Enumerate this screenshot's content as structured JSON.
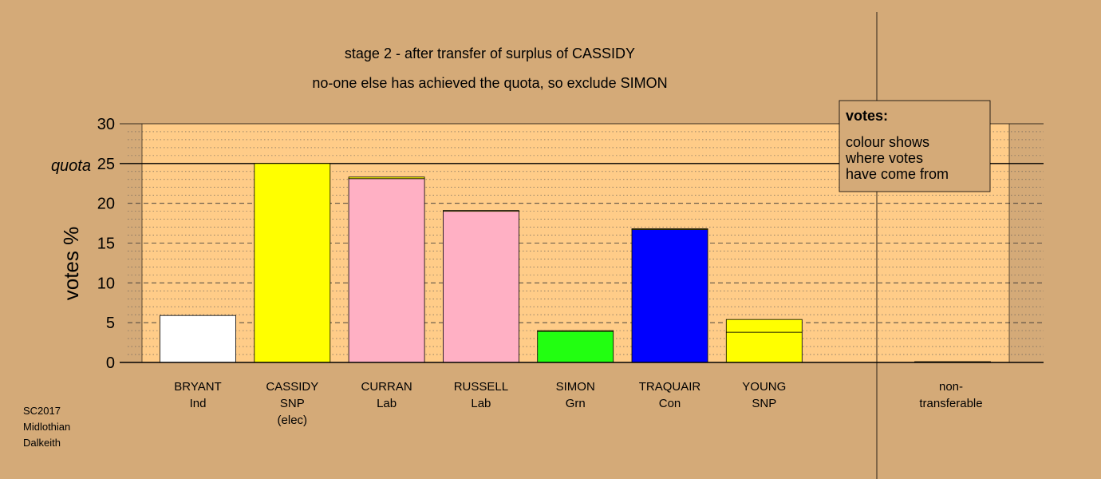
{
  "chart_data": {
    "type": "bar",
    "title": "stage 2 - after transfer of surplus of CASSIDY",
    "subtitle": "no-one else has achieved the quota, so exclude SIMON",
    "ylabel": "votes %",
    "ylim": [
      0,
      30
    ],
    "yticks": [
      "0",
      "5",
      "10",
      "15",
      "20",
      "25",
      "30"
    ],
    "quota": {
      "value": 25,
      "label": "quota"
    },
    "grid": true,
    "categories": [
      {
        "name": "BRYANT",
        "party": "Ind",
        "note": ""
      },
      {
        "name": "CASSIDY",
        "party": "SNP",
        "note": "(elec)"
      },
      {
        "name": "CURRAN",
        "party": "Lab",
        "note": ""
      },
      {
        "name": "RUSSELL",
        "party": "Lab",
        "note": ""
      },
      {
        "name": "SIMON",
        "party": "Grn",
        "note": ""
      },
      {
        "name": "TRAQUAIR",
        "party": "Con",
        "note": ""
      },
      {
        "name": "YOUNG",
        "party": "SNP",
        "note": ""
      }
    ],
    "bars": [
      {
        "segments": [
          {
            "value": 5.9,
            "color": "#ffffff"
          }
        ]
      },
      {
        "segments": [
          {
            "value": 25.0,
            "color": "#ffff00"
          }
        ]
      },
      {
        "segments": [
          {
            "value": 23.1,
            "color": "#ffb0c4"
          },
          {
            "value": 0.2,
            "color": "#ffff00"
          }
        ]
      },
      {
        "segments": [
          {
            "value": 19.0,
            "color": "#ffb0c4"
          },
          {
            "value": 0.1,
            "color": "#ffff00"
          }
        ]
      },
      {
        "segments": [
          {
            "value": 3.9,
            "color": "#22ff11"
          },
          {
            "value": 0.1,
            "color": "#ffff00"
          }
        ]
      },
      {
        "segments": [
          {
            "value": 16.7,
            "color": "#0000ff"
          },
          {
            "value": 0.1,
            "color": "#ffff00"
          }
        ]
      },
      {
        "segments": [
          {
            "value": 3.8,
            "color": "#ffff00"
          },
          {
            "value": 1.6,
            "color": "#ffff00"
          }
        ]
      }
    ],
    "nontransferable": {
      "label_line1": "non-",
      "label_line2": "transferable",
      "value": 0.1,
      "color": "#ffff00"
    },
    "legend": {
      "placement": "top-right",
      "title": "votes:",
      "lines": [
        "colour shows",
        "where votes",
        "have come from"
      ]
    },
    "colors": {
      "background": "#d4aa78",
      "plot": "#ffcc88"
    }
  },
  "footer": {
    "lines": [
      "SC2017",
      "Midlothian",
      "Dalkeith"
    ]
  }
}
